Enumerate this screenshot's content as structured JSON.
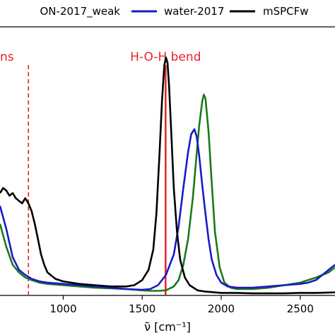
{
  "chart_data": {
    "type": "line",
    "xlabel": "ν̃ [cm⁻¹]",
    "ylabel": "",
    "xlim": [
      600,
      2720
    ],
    "ylim": [
      0,
      1.05
    ],
    "grid": false,
    "legend": {
      "placement": "top",
      "entries": [
        {
          "label": "ON-2017_weak",
          "color": "#1a7a1a"
        },
        {
          "label": "water-2017",
          "color": "#1a1ac8"
        },
        {
          "label": "mSPCFw",
          "color": "#000000"
        }
      ]
    },
    "xticks": [
      1000,
      1500,
      2000,
      2500
    ],
    "xtick_labels": [
      "1000",
      "1500",
      "2000",
      "2500"
    ],
    "annotations": [
      {
        "text": "ns",
        "x": 780,
        "style": "dashed",
        "color": "#e8202a"
      },
      {
        "text": "H-O-H bend",
        "x": 1648,
        "style": "solid",
        "color": "#e8202a"
      }
    ],
    "series": [
      {
        "name": "ON-2017_weak",
        "color": "#1a7a1a",
        "x": [
          600,
          640,
          680,
          720,
          760,
          800,
          850,
          900,
          1000,
          1100,
          1200,
          1300,
          1400,
          1500,
          1550,
          1600,
          1650,
          1700,
          1730,
          1760,
          1790,
          1820,
          1840,
          1860,
          1880,
          1890,
          1900,
          1920,
          1940,
          1960,
          1990,
          2020,
          2060,
          2100,
          2200,
          2300,
          2400,
          2500,
          2550,
          2600,
          2640,
          2680,
          2720
        ],
        "y": [
          0.28,
          0.19,
          0.12,
          0.09,
          0.07,
          0.06,
          0.05,
          0.045,
          0.04,
          0.035,
          0.03,
          0.028,
          0.025,
          0.02,
          0.018,
          0.018,
          0.02,
          0.035,
          0.06,
          0.12,
          0.22,
          0.38,
          0.52,
          0.66,
          0.76,
          0.785,
          0.77,
          0.64,
          0.44,
          0.25,
          0.11,
          0.05,
          0.03,
          0.025,
          0.025,
          0.03,
          0.04,
          0.05,
          0.06,
          0.07,
          0.08,
          0.09,
          0.11
        ]
      },
      {
        "name": "water-2017",
        "color": "#1a1ac8",
        "x": [
          600,
          640,
          680,
          720,
          760,
          800,
          850,
          900,
          1000,
          1100,
          1200,
          1300,
          1400,
          1500,
          1550,
          1600,
          1650,
          1700,
          1730,
          1760,
          1790,
          1810,
          1830,
          1845,
          1860,
          1880,
          1900,
          1920,
          1940,
          1970,
          2000,
          2040,
          2100,
          2200,
          2300,
          2400,
          2500,
          2550,
          2600,
          2640,
          2680,
          2720
        ],
        "y": [
          0.35,
          0.26,
          0.15,
          0.1,
          0.08,
          0.065,
          0.055,
          0.05,
          0.045,
          0.04,
          0.035,
          0.03,
          0.025,
          0.022,
          0.025,
          0.04,
          0.08,
          0.16,
          0.27,
          0.42,
          0.56,
          0.63,
          0.65,
          0.62,
          0.55,
          0.43,
          0.32,
          0.22,
          0.14,
          0.08,
          0.05,
          0.035,
          0.03,
          0.03,
          0.035,
          0.04,
          0.045,
          0.05,
          0.06,
          0.08,
          0.1,
          0.12
        ]
      },
      {
        "name": "mSPCFw",
        "color": "#000000",
        "x": [
          600,
          620,
          640,
          660,
          680,
          700,
          720,
          740,
          760,
          780,
          800,
          820,
          840,
          860,
          880,
          900,
          950,
          1000,
          1100,
          1200,
          1300,
          1400,
          1450,
          1500,
          1540,
          1570,
          1590,
          1610,
          1625,
          1640,
          1650,
          1660,
          1670,
          1685,
          1700,
          1720,
          1740,
          1770,
          1800,
          1850,
          1900,
          2000,
          2100,
          2200,
          2300,
          2400,
          2500,
          2600,
          2720
        ],
        "y": [
          0.4,
          0.42,
          0.41,
          0.39,
          0.4,
          0.38,
          0.37,
          0.36,
          0.38,
          0.36,
          0.33,
          0.28,
          0.22,
          0.16,
          0.12,
          0.09,
          0.065,
          0.055,
          0.045,
          0.04,
          0.035,
          0.035,
          0.04,
          0.06,
          0.1,
          0.18,
          0.32,
          0.56,
          0.76,
          0.9,
          0.93,
          0.91,
          0.82,
          0.62,
          0.42,
          0.25,
          0.14,
          0.07,
          0.04,
          0.02,
          0.015,
          0.01,
          0.01,
          0.008,
          0.008,
          0.008,
          0.01,
          0.01,
          0.012
        ]
      }
    ]
  }
}
